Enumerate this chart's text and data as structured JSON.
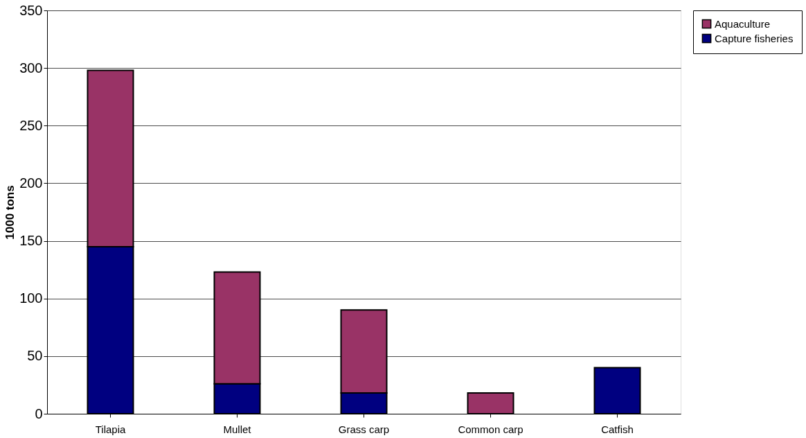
{
  "chart_data": {
    "type": "bar",
    "stacked": true,
    "ylabel": "1000 tons",
    "categories": [
      "Tilapia",
      "Mullet",
      "Grass carp",
      "Common carp",
      "Catfish"
    ],
    "series": [
      {
        "name": "Capture fisheries",
        "color": "#000080",
        "values": [
          145,
          26,
          18,
          null,
          40
        ]
      },
      {
        "name": "Aquaculture",
        "color": "#993366",
        "values": [
          153,
          97,
          72,
          18,
          null
        ]
      }
    ],
    "ylim": [
      0,
      350
    ],
    "yticks": [
      0,
      50,
      100,
      150,
      200,
      250,
      300,
      350
    ],
    "grid": "y",
    "legend": "right"
  }
}
